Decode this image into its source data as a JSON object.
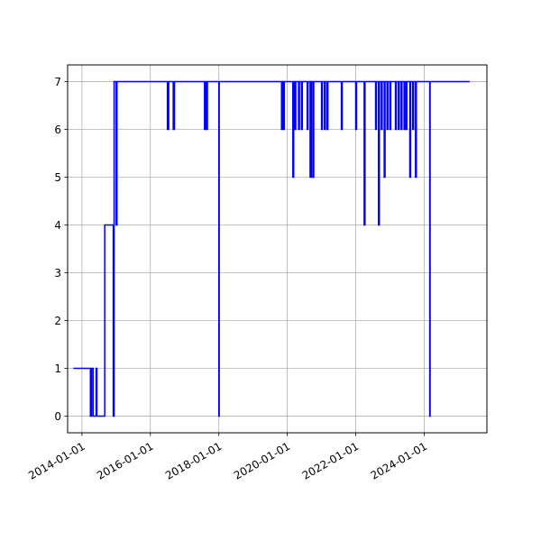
{
  "chart_data": {
    "type": "line",
    "drawstyle": "steps-post",
    "grid": true,
    "title": "",
    "xlabel": "",
    "ylabel": "",
    "line_color": "#0000ff",
    "xlim": [
      "2013-08-01",
      "2025-11-01"
    ],
    "ylim": [
      -0.35,
      7.35
    ],
    "x_ticks": [
      "2014-01-01",
      "2016-01-01",
      "2018-01-01",
      "2020-01-01",
      "2022-01-01",
      "2024-01-01"
    ],
    "y_ticks": [
      0,
      1,
      2,
      3,
      4,
      5,
      6,
      7
    ],
    "series": [
      {
        "x": [
          "2013-10-01",
          "2014-04-01",
          "2014-04-15",
          "2014-05-01",
          "2014-06-01",
          "2014-06-10",
          "2014-07-01",
          "2014-09-01",
          "2014-12-01",
          "2014-12-10",
          "2015-01-01",
          "2015-01-10",
          "2016-07-01",
          "2016-07-15",
          "2016-09-01",
          "2016-09-15",
          "2017-08-01",
          "2017-08-10",
          "2017-08-20",
          "2017-09-01",
          "2018-01-01",
          "2018-01-05",
          "2019-11-01",
          "2019-11-15",
          "2019-11-20",
          "2019-12-01",
          "2020-03-01",
          "2020-03-10",
          "2020-03-20",
          "2020-04-01",
          "2020-05-01",
          "2020-05-10",
          "2020-06-01",
          "2020-06-10",
          "2020-07-01",
          "2020-07-10",
          "2020-08-01",
          "2020-08-10",
          "2020-09-01",
          "2020-09-15",
          "2020-10-01",
          "2020-10-10",
          "2021-01-01",
          "2021-01-10",
          "2021-02-01",
          "2021-02-10",
          "2021-03-01",
          "2021-03-10",
          "2021-08-01",
          "2021-08-10",
          "2022-01-01",
          "2022-01-10",
          "2022-04-01",
          "2022-04-10",
          "2022-08-01",
          "2022-08-10",
          "2022-09-01",
          "2022-09-10",
          "2022-10-01",
          "2022-10-10",
          "2022-11-01",
          "2022-11-10",
          "2022-12-01",
          "2022-12-10",
          "2023-01-01",
          "2023-01-10",
          "2023-03-01",
          "2023-03-10",
          "2023-04-01",
          "2023-04-10",
          "2023-05-01",
          "2023-05-10",
          "2023-06-01",
          "2023-06-05",
          "2023-06-20",
          "2023-07-01",
          "2023-07-10",
          "2023-08-01",
          "2023-08-10",
          "2023-09-01",
          "2023-09-10",
          "2023-10-01",
          "2023-10-10",
          "2024-03-01",
          "2024-03-05",
          "2025-05-01"
        ],
        "y": [
          1,
          0,
          1,
          0,
          1,
          0,
          0,
          4,
          0,
          7,
          4,
          7,
          6,
          7,
          6,
          7,
          6,
          7,
          6,
          7,
          0,
          7,
          6,
          7,
          6,
          7,
          5,
          7,
          6,
          7,
          6,
          7,
          6,
          7,
          7,
          7,
          6,
          7,
          5,
          7,
          5,
          7,
          6,
          7,
          6,
          7,
          6,
          7,
          6,
          7,
          6,
          7,
          4,
          7,
          6,
          7,
          4,
          7,
          6,
          7,
          5,
          7,
          6,
          7,
          6,
          7,
          6,
          7,
          6,
          7,
          6,
          7,
          6,
          7,
          6,
          7,
          7,
          5,
          7,
          6,
          7,
          5,
          7,
          0,
          7,
          7
        ]
      }
    ]
  }
}
